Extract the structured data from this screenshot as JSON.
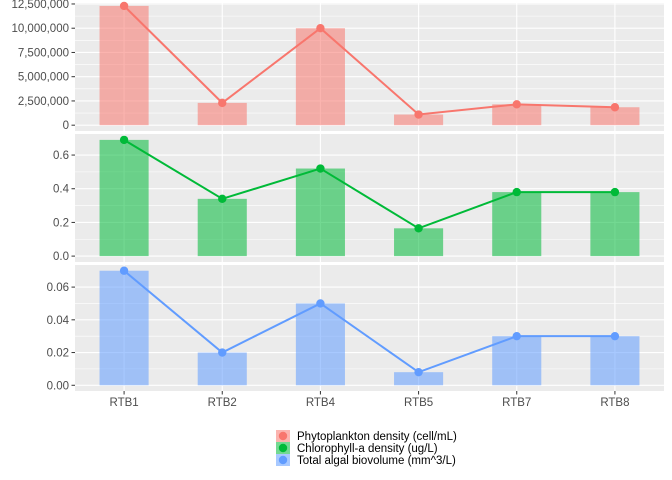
{
  "chart_data": {
    "type": "bar",
    "categories": [
      "RTB1",
      "RTB2",
      "RTB4",
      "RTB5",
      "RTB7",
      "RTB8"
    ],
    "panels": [
      {
        "name": "Phytoplankton density (cell/mL)",
        "color": "#F8766D",
        "values": [
          12300000,
          2300000,
          10000000,
          1100000,
          2150000,
          1850000
        ],
        "ylim": [
          -600000,
          12600000
        ],
        "ticks": [
          0,
          2500000,
          5000000,
          7500000,
          10000000,
          12500000
        ],
        "tick_labels": [
          "0",
          "2,500,000",
          "5,000,000",
          "7,500,000",
          "10,000,000",
          "12,500,000"
        ]
      },
      {
        "name": "Chlorophyll-a density (ug/L)",
        "color": "#00BA38",
        "values": [
          0.69,
          0.34,
          0.52,
          0.165,
          0.38,
          0.38
        ],
        "ylim": [
          -0.035,
          0.725
        ],
        "ticks": [
          0,
          0.2,
          0.4,
          0.6
        ],
        "tick_labels": [
          "0.0",
          "0.2",
          "0.4",
          "0.6"
        ]
      },
      {
        "name": "Total algal biovolume (mm^3/L)",
        "color": "#619CFF",
        "values": [
          0.07,
          0.02,
          0.05,
          0.008,
          0.03,
          0.03
        ],
        "ylim": [
          -0.0035,
          0.0735
        ],
        "ticks": [
          0,
          0.02,
          0.04,
          0.06
        ],
        "tick_labels": [
          "0.00",
          "0.02",
          "0.04",
          "0.06"
        ]
      }
    ],
    "legend": {
      "position": "bottom",
      "entries": [
        "Phytoplankton density (cell/mL)",
        "Chlorophyll-a density (ug/L)",
        "Total algal biovolume (mm^3/L)"
      ]
    },
    "grid": true,
    "facet": "stacked panels sharing x axis"
  }
}
